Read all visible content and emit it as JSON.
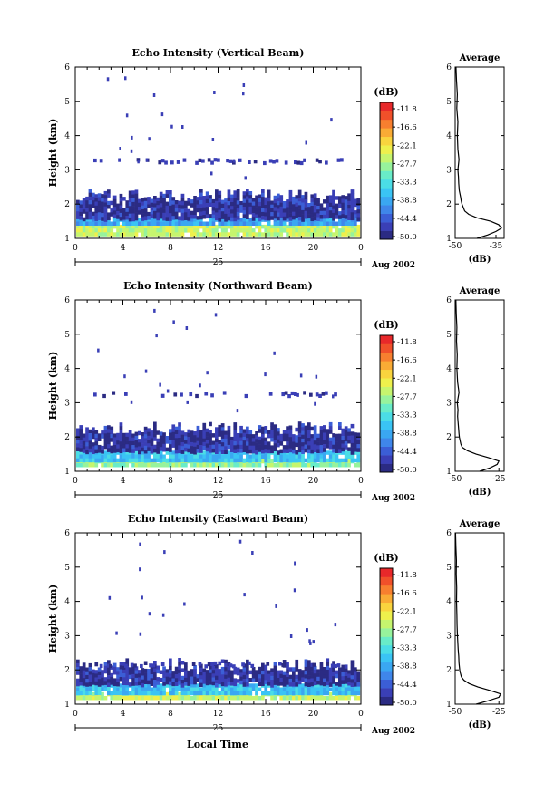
{
  "figure": {
    "xlabel": "Local Time",
    "date_label": "Aug 2002",
    "day_label": "25",
    "colorbar_unit": "(dB)",
    "colorbar_ticks": [
      "-11.8",
      "-16.6",
      "-22.1",
      "-27.7",
      "-33.3",
      "-38.8",
      "-44.4",
      "-50.0"
    ],
    "colors": [
      "#2b2b83",
      "#3a3fb6",
      "#3b5ed6",
      "#3f86ea",
      "#3aa7f2",
      "#3ac4f4",
      "#4bdde6",
      "#69ecc8",
      "#97f39c",
      "#c6f56e",
      "#eef04c",
      "#f9d43e",
      "#f9ab35",
      "#f77f2f",
      "#f0502a",
      "#e8282a"
    ]
  },
  "chart_data": [
    {
      "type": "heatmap",
      "title": "Echo Intensity (Vertical Beam)",
      "ylabel": "Height (km)",
      "x_ticks": [
        "0",
        "4",
        "8",
        "12",
        "16",
        "20",
        "0"
      ],
      "xlim": [
        0,
        24
      ],
      "y_ticks": [
        "1",
        "2",
        "3",
        "4",
        "5",
        "6"
      ],
      "ylim": [
        1,
        6
      ],
      "color_range_db": [
        -50.0,
        -11.8
      ],
      "layers": [
        {
          "from_km": 1.15,
          "to_km": 1.4,
          "level": 9
        },
        {
          "from_km": 1.4,
          "to_km": 1.6,
          "level": 4
        },
        {
          "from_km": 1.6,
          "to_km": 2.4,
          "level": 1
        }
      ],
      "sparse_layer_km": 3.3,
      "profile": {
        "title": "Average",
        "xlabel": "(dB)",
        "x_ticks": [
          "-50",
          "-35"
        ],
        "xlim": [
          -50,
          -32
        ],
        "y_ticks": [
          "1",
          "2",
          "3",
          "4",
          "5",
          "6"
        ],
        "ylim": [
          1,
          6
        ],
        "height_km": [
          1.0,
          1.1,
          1.2,
          1.3,
          1.4,
          1.5,
          1.6,
          1.7,
          1.8,
          1.9,
          2.0,
          2.1,
          2.2,
          2.4,
          2.6,
          2.8,
          3.0,
          3.3,
          3.6,
          4.0,
          4.4,
          4.8,
          5.2,
          5.6,
          6.0
        ],
        "mean_db": [
          -42,
          -38,
          -35,
          -33,
          -34,
          -37,
          -42,
          -45,
          -46.5,
          -47,
          -47.5,
          -47.8,
          -48,
          -48.5,
          -48.7,
          -48.8,
          -49,
          -48.6,
          -49,
          -49.2,
          -49,
          -49.4,
          -49.2,
          -49.5,
          -49.7
        ]
      }
    },
    {
      "type": "heatmap",
      "title": "Echo Intensity (Northward Beam)",
      "ylabel": "Height (km)",
      "x_ticks": [
        "0",
        "4",
        "8",
        "12",
        "16",
        "20",
        "0"
      ],
      "xlim": [
        0,
        24
      ],
      "y_ticks": [
        "1",
        "2",
        "3",
        "4",
        "5",
        "6"
      ],
      "ylim": [
        1,
        6
      ],
      "color_range_db": [
        -50.0,
        -11.8
      ],
      "layers": [
        {
          "from_km": 1.15,
          "to_km": 1.35,
          "level": 8
        },
        {
          "from_km": 1.35,
          "to_km": 1.6,
          "level": 5
        },
        {
          "from_km": 1.6,
          "to_km": 2.4,
          "level": 1
        }
      ],
      "sparse_layer_km": 3.3,
      "profile": {
        "title": "Average",
        "xlabel": "(dB)",
        "x_ticks": [
          "-50",
          "-25"
        ],
        "xlim": [
          -50,
          -22
        ],
        "y_ticks": [
          "1",
          "2",
          "3",
          "4",
          "5",
          "6"
        ],
        "ylim": [
          1,
          6
        ],
        "height_km": [
          1.0,
          1.1,
          1.2,
          1.3,
          1.4,
          1.5,
          1.6,
          1.7,
          1.8,
          1.9,
          2.0,
          2.1,
          2.2,
          2.4,
          2.6,
          2.8,
          3.0,
          3.3,
          3.6,
          4.0,
          4.4,
          4.8,
          5.2,
          5.6,
          6.0
        ],
        "mean_db": [
          -36,
          -30,
          -26,
          -25,
          -31,
          -38,
          -43,
          -46,
          -46.8,
          -47.2,
          -47.6,
          -47.8,
          -48,
          -48.3,
          -48.6,
          -48.4,
          -48.8,
          -47.8,
          -48.6,
          -49,
          -48.8,
          -49.2,
          -49,
          -49.4,
          -49.6
        ]
      }
    },
    {
      "type": "heatmap",
      "title": "Echo Intensity (Eastward Beam)",
      "ylabel": "Height (km)",
      "x_ticks": [
        "0",
        "4",
        "8",
        "12",
        "16",
        "20",
        "0"
      ],
      "xlim": [
        0,
        24
      ],
      "y_ticks": [
        "1",
        "2",
        "3",
        "4",
        "5",
        "6"
      ],
      "ylim": [
        1,
        6
      ],
      "color_range_db": [
        -50.0,
        -11.8
      ],
      "layers": [
        {
          "from_km": 1.15,
          "to_km": 1.35,
          "level": 9
        },
        {
          "from_km": 1.35,
          "to_km": 1.6,
          "level": 5
        },
        {
          "from_km": 1.6,
          "to_km": 2.3,
          "level": 1
        }
      ],
      "sparse_layer_km": 2.2,
      "profile": {
        "title": "Average",
        "xlabel": "(dB)",
        "x_ticks": [
          "-50",
          "-25"
        ],
        "xlim": [
          -50,
          -22
        ],
        "y_ticks": [
          "1",
          "2",
          "3",
          "4",
          "5",
          "6"
        ],
        "ylim": [
          1,
          6
        ],
        "height_km": [
          1.0,
          1.1,
          1.2,
          1.3,
          1.4,
          1.5,
          1.6,
          1.7,
          1.8,
          1.9,
          2.0,
          2.1,
          2.2,
          2.4,
          2.6,
          2.8,
          3.0,
          3.3,
          3.6,
          4.0,
          4.4,
          4.8,
          5.2,
          5.6,
          6.0
        ],
        "mean_db": [
          -38,
          -31,
          -25,
          -24,
          -30,
          -37,
          -42,
          -45,
          -46.5,
          -47,
          -47.4,
          -47.6,
          -47.8,
          -48,
          -48.3,
          -48.5,
          -48.7,
          -48.9,
          -49,
          -49.2,
          -49.1,
          -49.4,
          -49.3,
          -49.6,
          -49.8
        ]
      }
    }
  ]
}
